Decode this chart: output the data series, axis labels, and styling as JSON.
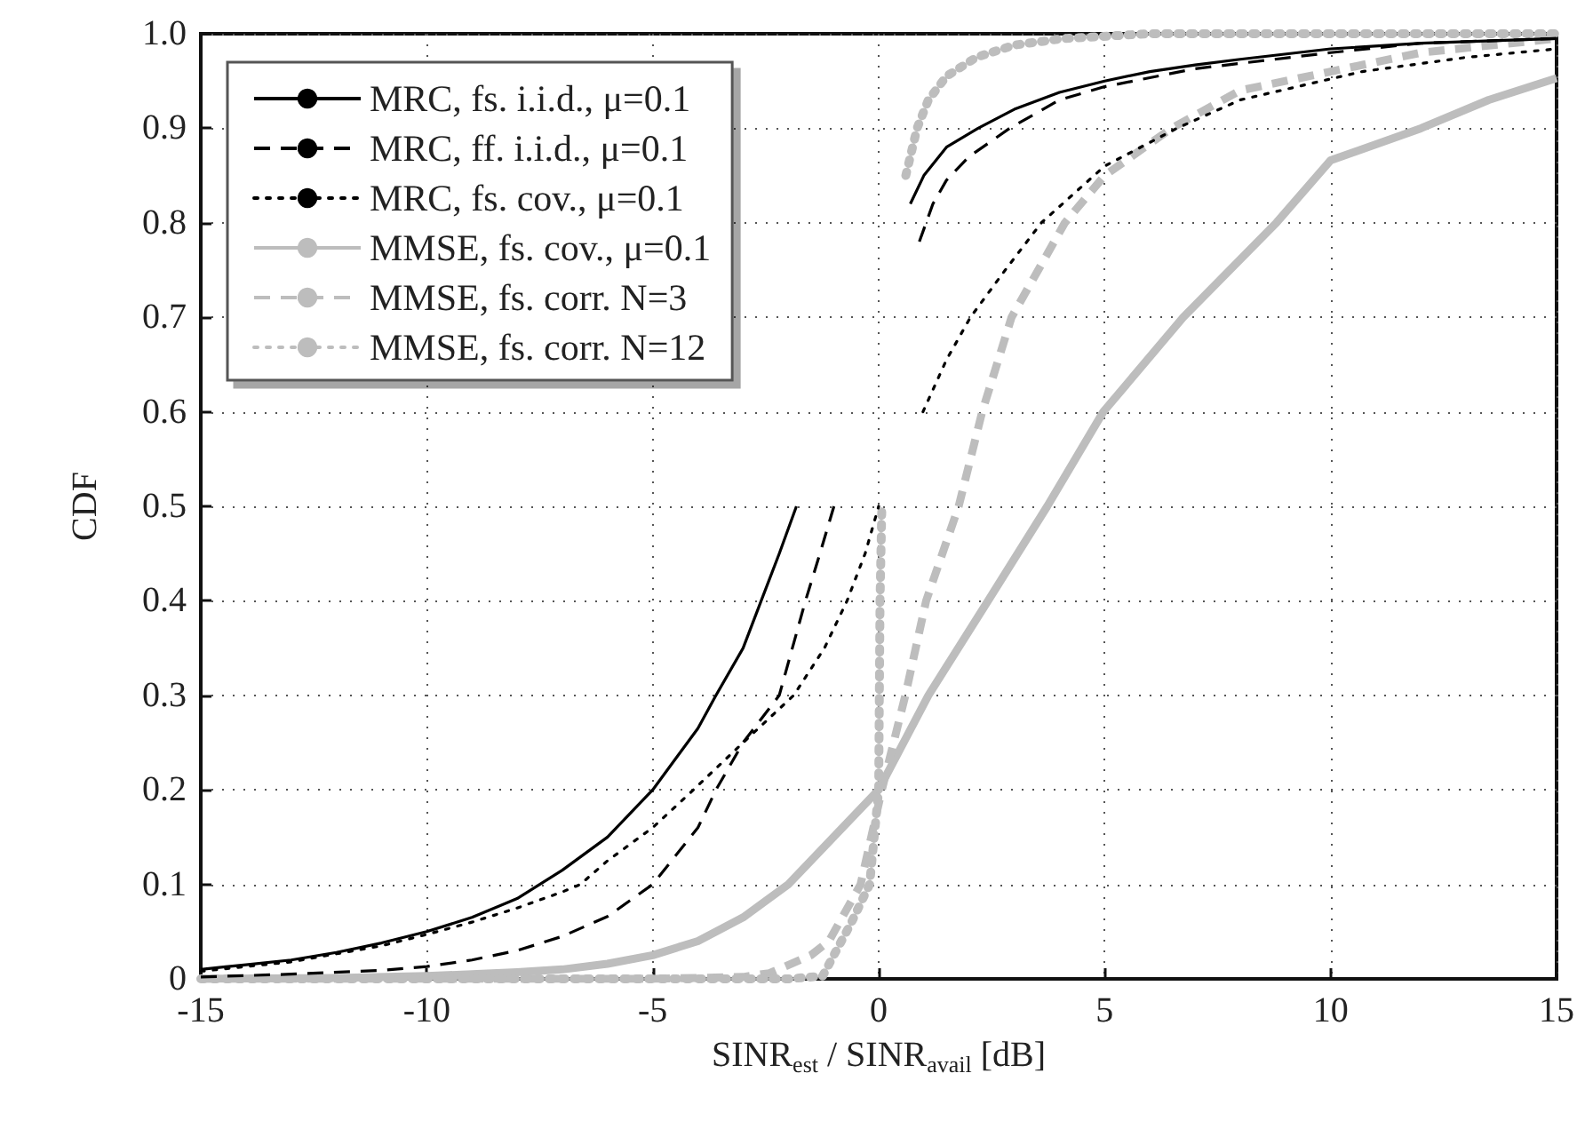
{
  "chart_data": {
    "type": "line",
    "xlabel": "SINR$_{est}$ / SINR$_{avail}$ [dB]",
    "ylabel": "CDF",
    "xlim": [
      -15,
      15
    ],
    "xticks": [
      -15,
      -10,
      -5,
      0,
      5,
      10,
      15
    ],
    "ylim": [
      0,
      1
    ],
    "yticks": [
      0,
      0.1,
      0.2,
      0.3,
      0.4,
      0.5,
      0.6,
      0.7,
      0.8,
      0.9,
      {
        "value": 1,
        "label": "1.0"
      }
    ],
    "grid": true,
    "legend": "top left",
    "marker": "none",
    "series": [
      {
        "name": "MRC, fs. i.i.d., μ=0.1",
        "color": "#000000",
        "line_style": "solid",
        "x": [
          -15,
          -14,
          -13,
          -12,
          -11,
          -10,
          -9,
          -8,
          -7.5,
          -7,
          -6,
          -5,
          -4,
          -3.6,
          -3,
          -2.6,
          -2.2,
          -1.82,
          -1.6,
          0.7,
          1,
          1.5,
          2.2,
          3,
          4,
          5,
          6,
          7,
          8,
          10,
          12,
          15
        ],
        "values": [
          0.01,
          0.015,
          0.02,
          0.028,
          0.038,
          0.05,
          0.065,
          0.085,
          0.1,
          0.115,
          0.15,
          0.2,
          0.265,
          0.3,
          0.35,
          0.4,
          0.45,
          0.5,
          null,
          0.82,
          0.85,
          0.88,
          0.9,
          0.92,
          0.938,
          0.95,
          0.96,
          0.967,
          0.973,
          0.984,
          0.99,
          0.995
        ]
      },
      {
        "name": "MRC, ff. i.i.d., μ=0.1",
        "color": "#000000",
        "line_style": "dashed",
        "x": [
          -15,
          -13,
          -11,
          -10,
          -9,
          -8,
          -7,
          -6,
          -5,
          -4,
          -3.6,
          -3,
          -2.2,
          -1.62,
          -1.3,
          -0.99,
          -0.7,
          0.9,
          1.2,
          1.5,
          2,
          2.9,
          4,
          5,
          7,
          10,
          12,
          15
        ],
        "values": [
          0.002,
          0.005,
          0.009,
          0.013,
          0.02,
          0.03,
          0.045,
          0.066,
          0.1,
          0.16,
          0.2,
          0.25,
          0.3,
          0.4,
          0.45,
          0.5,
          null,
          0.78,
          0.82,
          0.845,
          0.87,
          0.9,
          0.93,
          0.944,
          0.963,
          0.98,
          0.99,
          0.995
        ]
      },
      {
        "name": "MRC, fs. cov., μ=0.1",
        "color": "#000000",
        "line_style": "dotted",
        "x": [
          -15,
          -13,
          -11,
          -10,
          -9,
          -8,
          -7,
          -6.6,
          -6,
          -5,
          -4.1,
          -3,
          -1.88,
          -1.2,
          -0.7,
          -0.3,
          0,
          0.3,
          0.98,
          1.5,
          2.03,
          2.8,
          3.6,
          5,
          6.6,
          8,
          10.7,
          13,
          15
        ],
        "values": [
          0.008,
          0.018,
          0.035,
          0.047,
          0.06,
          0.075,
          0.092,
          0.1,
          0.125,
          0.16,
          0.2,
          0.25,
          0.3,
          0.35,
          0.4,
          0.45,
          0.5,
          null,
          0.6,
          0.655,
          0.7,
          0.75,
          0.8,
          0.86,
          0.9,
          0.93,
          0.96,
          0.975,
          0.984
        ]
      },
      {
        "name": "MMSE, fs. cov., μ=0.1",
        "color": "#bdbdbd",
        "line_style": "solid",
        "x": [
          -15,
          -12,
          -10,
          -8,
          -7,
          -6,
          -5,
          -4,
          -3,
          -2,
          -1,
          0,
          1.1,
          2.42,
          3.73,
          4.97,
          6.74,
          8.8,
          10,
          12,
          13.5,
          15
        ],
        "values": [
          0,
          0.001,
          0.003,
          0.007,
          0.01,
          0.016,
          0.025,
          0.04,
          0.065,
          0.1,
          0.15,
          0.2,
          0.3,
          0.4,
          0.5,
          0.6,
          0.7,
          0.8,
          0.866,
          0.9,
          0.93,
          0.953
        ]
      },
      {
        "name": "MMSE, fs. corr. N=3",
        "color": "#bdbdbd",
        "line_style": "dashed",
        "x": [
          -15,
          -10,
          -5,
          -3,
          -2.42,
          -1.5,
          -1.1,
          -0.4,
          0.07,
          0.59,
          1.05,
          1.77,
          2.29,
          2.94,
          4.12,
          5,
          6.48,
          8,
          10,
          12,
          15
        ],
        "values": [
          0,
          0,
          0,
          0.002,
          0.006,
          0.025,
          0.04,
          0.1,
          0.2,
          0.3,
          0.4,
          0.5,
          0.6,
          0.7,
          0.8,
          0.85,
          0.9,
          0.94,
          0.96,
          0.98,
          0.995
        ]
      },
      {
        "name": "MMSE, fs. corr. N=12",
        "color": "#bdbdbd",
        "line_style": "dotted",
        "x": [
          -15,
          -5,
          -2,
          -1.24,
          -0.6,
          -0.2,
          0,
          0.03,
          0.07,
          0.3,
          0.6,
          0.85,
          1.1,
          1.5,
          2.16,
          3,
          4.1,
          6,
          10,
          15
        ],
        "values": [
          0,
          0,
          0,
          0.003,
          0.06,
          0.1,
          0.2,
          0.4,
          0.5,
          null,
          0.85,
          0.9,
          0.93,
          0.955,
          0.975,
          0.988,
          0.995,
          1,
          1,
          1
        ]
      }
    ]
  }
}
